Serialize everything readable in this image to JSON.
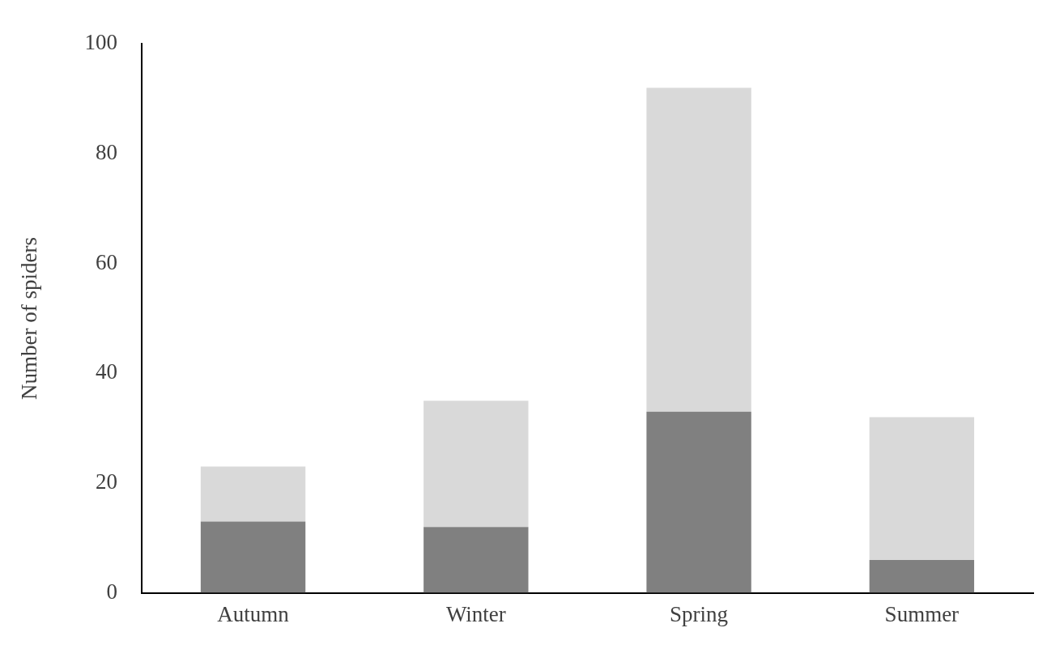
{
  "chart_data": {
    "type": "bar",
    "ylabel": "Number of spiders",
    "categories": [
      "Autumn",
      "Winter",
      "Spring",
      "Summer"
    ],
    "series": [
      {
        "color": "#808080",
        "values": [
          13,
          12,
          33,
          6
        ]
      },
      {
        "color": "#d9d9d9",
        "values": [
          10,
          23,
          59,
          26
        ]
      }
    ],
    "stacked": true,
    "ylim": [
      0,
      100
    ],
    "yticks": [
      0,
      20,
      40,
      60,
      80,
      100
    ]
  }
}
